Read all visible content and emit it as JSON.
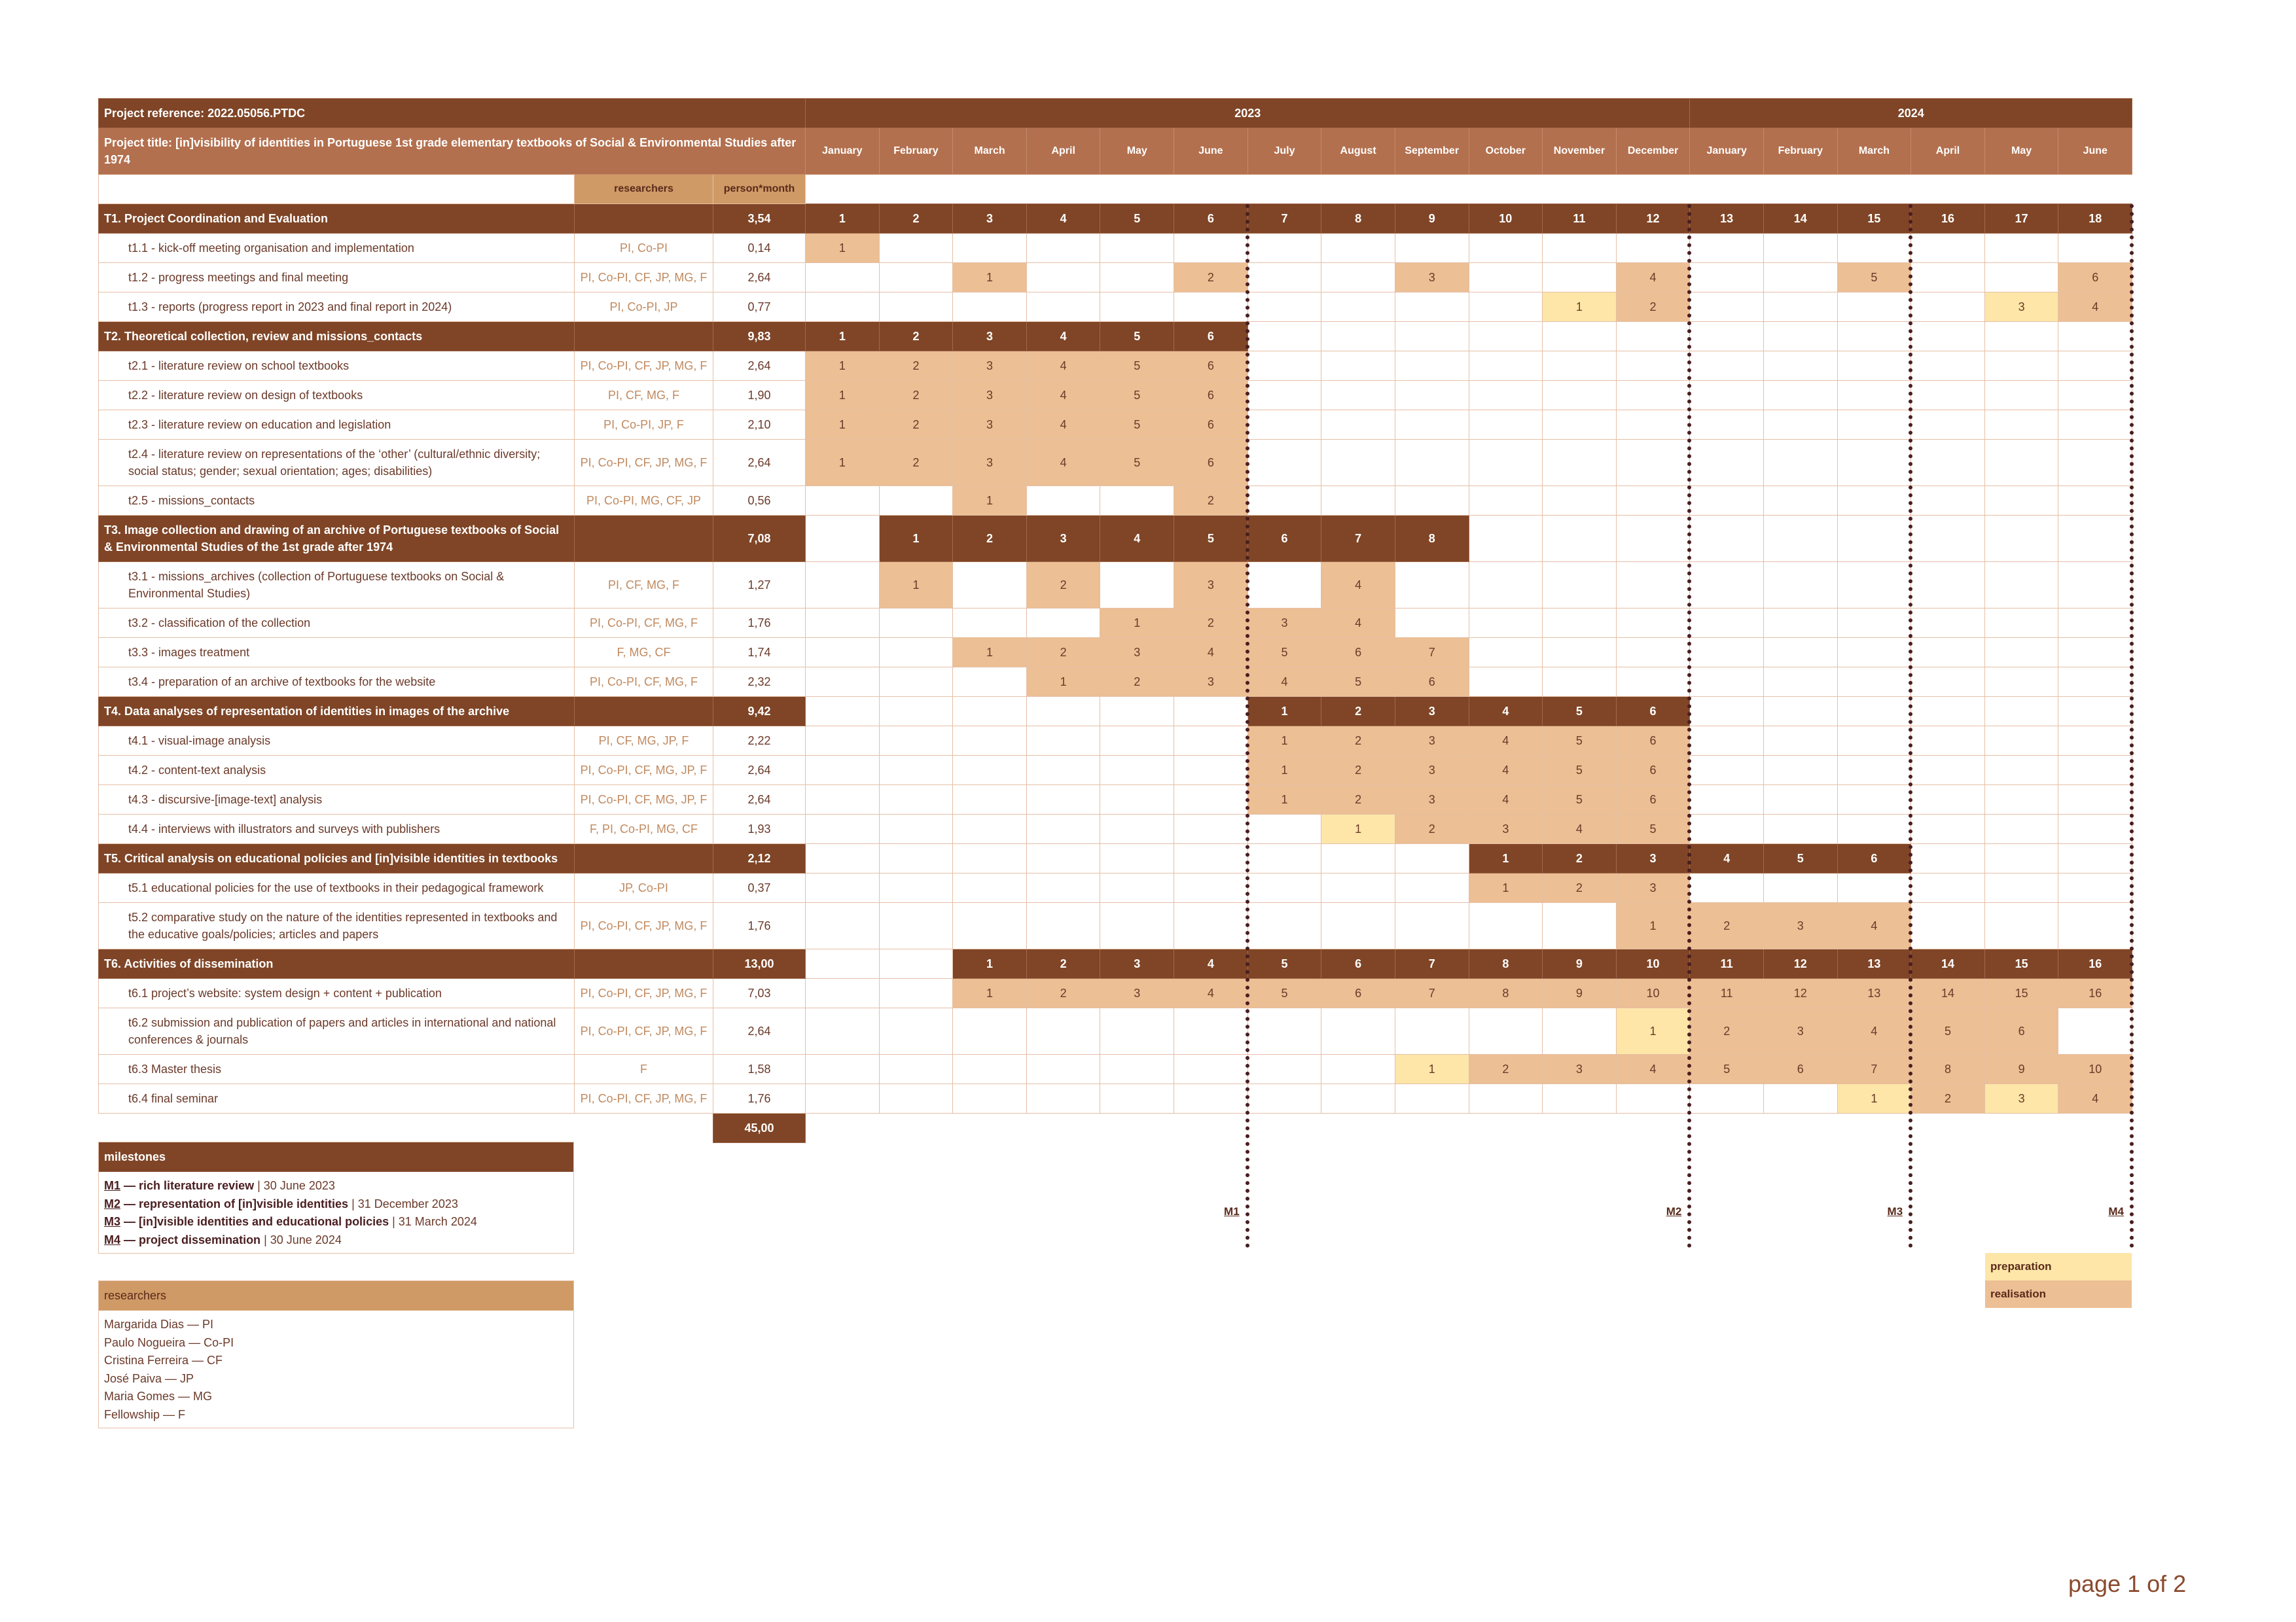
{
  "header": {
    "reference": "Project reference: 2022.05056.PTDC",
    "title": "Project title: [in]visibility of identities in Portuguese 1st grade elementary textbooks of Social & Environmental Studies after 1974",
    "researchers_col": "researchers",
    "person_month_col": "person*month"
  },
  "years": [
    {
      "year": "2023",
      "months": [
        "January",
        "February",
        "March",
        "April",
        "May",
        "June",
        "July",
        "August",
        "September",
        "October",
        "November",
        "December"
      ]
    },
    {
      "year": "2024",
      "months": [
        "January",
        "February",
        "March",
        "April",
        "May",
        "June"
      ]
    }
  ],
  "groups": [
    {
      "title": "T1. Project Coordination and Evaluation",
      "person_month": "3,54",
      "cells": [
        1,
        2,
        3,
        4,
        5,
        6,
        7,
        8,
        9,
        10,
        11,
        12,
        13,
        14,
        15,
        16,
        17,
        18
      ],
      "tasks": [
        {
          "title": "t1.1 - kick-off meeting organisation and implementation",
          "researchers": "PI, Co-PI",
          "person_month": "0,14",
          "cells": [
            1,
            null,
            null,
            null,
            null,
            null,
            null,
            null,
            null,
            null,
            null,
            null,
            null,
            null,
            null,
            null,
            null,
            null
          ]
        },
        {
          "title": "t1.2 - progress meetings and final meeting",
          "researchers": "PI, Co-PI, CF, JP, MG, F",
          "person_month": "2,64",
          "cells": [
            null,
            null,
            1,
            null,
            null,
            2,
            null,
            null,
            3,
            null,
            null,
            4,
            null,
            null,
            5,
            null,
            null,
            6
          ]
        },
        {
          "title": "t1.3 - reports (progress report in 2023 and final report in 2024)",
          "researchers": "PI, Co-PI, JP",
          "person_month": "0,77",
          "cells": [
            null,
            null,
            null,
            null,
            null,
            null,
            null,
            null,
            null,
            null,
            {
              "value": 1,
              "stage": "preparation"
            },
            2,
            null,
            null,
            null,
            null,
            {
              "value": 3,
              "stage": "preparation"
            },
            4
          ]
        }
      ]
    },
    {
      "title": "T2. Theoretical collection, review and missions_contacts",
      "person_month": "9,83",
      "cells": [
        1,
        2,
        3,
        4,
        5,
        6,
        null,
        null,
        null,
        null,
        null,
        null,
        null,
        null,
        null,
        null,
        null,
        null
      ],
      "tasks": [
        {
          "title": "t2.1 - literature review on school textbooks",
          "researchers": "PI, Co-PI, CF, JP, MG, F",
          "person_month": "2,64",
          "cells": [
            1,
            2,
            3,
            4,
            5,
            6,
            null,
            null,
            null,
            null,
            null,
            null,
            null,
            null,
            null,
            null,
            null,
            null
          ]
        },
        {
          "title": "t2.2 - literature review on design of textbooks",
          "researchers": "PI, CF, MG, F",
          "person_month": "1,90",
          "cells": [
            1,
            2,
            3,
            4,
            5,
            6,
            null,
            null,
            null,
            null,
            null,
            null,
            null,
            null,
            null,
            null,
            null,
            null
          ]
        },
        {
          "title": "t2.3 - literature review on education and legislation",
          "researchers": "PI, Co-PI, JP, F",
          "person_month": "2,10",
          "cells": [
            1,
            2,
            3,
            4,
            5,
            6,
            null,
            null,
            null,
            null,
            null,
            null,
            null,
            null,
            null,
            null,
            null,
            null
          ]
        },
        {
          "title": "t2.4 - literature review on representations of the ‘other’ (cultural/ethnic diversity; social status; gender; sexual orientation; ages; disabilities)",
          "researchers": "PI, Co-PI, CF, JP, MG, F",
          "person_month": "2,64",
          "cells": [
            1,
            2,
            3,
            4,
            5,
            6,
            null,
            null,
            null,
            null,
            null,
            null,
            null,
            null,
            null,
            null,
            null,
            null
          ]
        },
        {
          "title": "t2.5 - missions_contacts",
          "researchers": "PI, Co-PI, MG, CF, JP",
          "person_month": "0,56",
          "cells": [
            null,
            null,
            1,
            null,
            null,
            2,
            null,
            null,
            null,
            null,
            null,
            null,
            null,
            null,
            null,
            null,
            null,
            null
          ]
        }
      ]
    },
    {
      "title": "T3. Image collection and drawing of an archive of Portuguese textbooks of Social & Environmental Studies of the 1st grade after 1974",
      "person_month": "7,08",
      "cells": [
        null,
        1,
        2,
        3,
        4,
        5,
        6,
        7,
        8,
        null,
        null,
        null,
        null,
        null,
        null,
        null,
        null,
        null
      ],
      "tasks": [
        {
          "title": "t3.1 - missions_archives (collection of Portuguese textbooks on Social & Environmental Studies)",
          "researchers": "PI, CF, MG, F",
          "person_month": "1,27",
          "cells": [
            null,
            1,
            null,
            2,
            null,
            3,
            null,
            4,
            null,
            null,
            null,
            null,
            null,
            null,
            null,
            null,
            null,
            null
          ]
        },
        {
          "title": "t3.2 - classification of the collection",
          "researchers": "PI, Co-PI, CF, MG, F",
          "person_month": "1,76",
          "cells": [
            null,
            null,
            null,
            null,
            1,
            2,
            3,
            4,
            null,
            null,
            null,
            null,
            null,
            null,
            null,
            null,
            null,
            null
          ]
        },
        {
          "title": "t3.3 - images treatment",
          "researchers": "F, MG, CF",
          "person_month": "1,74",
          "cells": [
            null,
            null,
            1,
            2,
            3,
            4,
            5,
            6,
            7,
            null,
            null,
            null,
            null,
            null,
            null,
            null,
            null,
            null
          ]
        },
        {
          "title": "t3.4 - preparation of an archive of textbooks for the website",
          "researchers": "PI, Co-PI, CF, MG, F",
          "person_month": "2,32",
          "cells": [
            null,
            null,
            null,
            1,
            2,
            3,
            4,
            5,
            6,
            null,
            null,
            null,
            null,
            null,
            null,
            null,
            null,
            null
          ]
        }
      ]
    },
    {
      "title": "T4. Data analyses of representation of identities in images of the archive",
      "person_month": "9,42",
      "cells": [
        null,
        null,
        null,
        null,
        null,
        null,
        1,
        2,
        3,
        4,
        5,
        6,
        null,
        null,
        null,
        null,
        null,
        null
      ],
      "tasks": [
        {
          "title": "t4.1 - visual-image analysis",
          "researchers": "PI, CF, MG, JP, F",
          "person_month": "2,22",
          "cells": [
            null,
            null,
            null,
            null,
            null,
            null,
            1,
            2,
            3,
            4,
            5,
            6,
            null,
            null,
            null,
            null,
            null,
            null
          ]
        },
        {
          "title": "t4.2 - content-text analysis",
          "researchers": "PI, Co-PI, CF, MG, JP, F",
          "person_month": "2,64",
          "cells": [
            null,
            null,
            null,
            null,
            null,
            null,
            1,
            2,
            3,
            4,
            5,
            6,
            null,
            null,
            null,
            null,
            null,
            null
          ]
        },
        {
          "title": "t4.3 - discursive-[image-text] analysis",
          "researchers": "PI, Co-PI, CF, MG, JP, F",
          "person_month": "2,64",
          "cells": [
            null,
            null,
            null,
            null,
            null,
            null,
            1,
            2,
            3,
            4,
            5,
            6,
            null,
            null,
            null,
            null,
            null,
            null
          ]
        },
        {
          "title": "t4.4 - interviews with illustrators and surveys with publishers",
          "researchers": "F, PI, Co-PI, MG, CF",
          "person_month": "1,93",
          "cells": [
            null,
            null,
            null,
            null,
            null,
            null,
            null,
            {
              "value": 1,
              "stage": "preparation"
            },
            2,
            3,
            4,
            5,
            null,
            null,
            null,
            null,
            null,
            null
          ]
        }
      ]
    },
    {
      "title": "T5. Critical analysis on educational policies and [in]visible identities in textbooks",
      "person_month": "2,12",
      "cells": [
        null,
        null,
        null,
        null,
        null,
        null,
        null,
        null,
        null,
        1,
        2,
        3,
        4,
        5,
        6,
        null,
        null,
        null
      ],
      "tasks": [
        {
          "title": "t5.1 educational policies for the use of textbooks in their pedagogical framework",
          "researchers": "JP, Co-PI",
          "person_month": "0,37",
          "cells": [
            null,
            null,
            null,
            null,
            null,
            null,
            null,
            null,
            null,
            1,
            2,
            3,
            null,
            null,
            null,
            null,
            null,
            null
          ]
        },
        {
          "title": "t5.2 comparative study on the nature of the identities represented in textbooks and the educative goals/policies; articles and papers",
          "researchers": "PI, Co-PI, CF, JP, MG, F",
          "person_month": "1,76",
          "cells": [
            null,
            null,
            null,
            null,
            null,
            null,
            null,
            null,
            null,
            null,
            null,
            1,
            2,
            3,
            4,
            null,
            null,
            null
          ]
        }
      ]
    },
    {
      "title": "T6. Activities of dissemination",
      "person_month": "13,00",
      "cells": [
        null,
        null,
        1,
        2,
        3,
        4,
        5,
        6,
        7,
        8,
        9,
        10,
        11,
        12,
        13,
        14,
        15,
        16
      ],
      "tasks": [
        {
          "title": "t6.1 project’s website: system design + content + publication",
          "researchers": "PI, Co-PI, CF, JP, MG, F",
          "person_month": "7,03",
          "cells": [
            null,
            null,
            1,
            2,
            3,
            4,
            5,
            6,
            7,
            8,
            9,
            10,
            11,
            12,
            13,
            14,
            15,
            16
          ]
        },
        {
          "title": "t6.2 submission and publication of papers and articles in international and national conferences & journals",
          "researchers": "PI, Co-PI, CF, JP, MG, F",
          "person_month": "2,64",
          "cells": [
            null,
            null,
            null,
            null,
            null,
            null,
            null,
            null,
            null,
            null,
            null,
            {
              "value": 1,
              "stage": "preparation"
            },
            2,
            3,
            4,
            5,
            6,
            null
          ]
        },
        {
          "title": "t6.3 Master thesis",
          "researchers": "F",
          "person_month": "1,58",
          "cells": [
            null,
            null,
            null,
            null,
            null,
            null,
            null,
            null,
            {
              "value": 1,
              "stage": "preparation"
            },
            2,
            3,
            4,
            5,
            6,
            7,
            8,
            9,
            10
          ]
        },
        {
          "title": "t6.4 final seminar",
          "researchers": "PI, Co-PI, CF, JP, MG, F",
          "person_month": "1,76",
          "cells": [
            null,
            null,
            null,
            null,
            null,
            null,
            null,
            null,
            null,
            null,
            null,
            null,
            null,
            null,
            {
              "value": 1,
              "stage": "preparation"
            },
            2,
            {
              "value": 3,
              "stage": "preparation"
            },
            4
          ]
        }
      ]
    }
  ],
  "total": "45,00",
  "milestones": {
    "title": "milestones",
    "items": [
      {
        "code": "M1",
        "name": " — rich literature review",
        "date": " | 30 June 2023"
      },
      {
        "code": "M2",
        "name": " — representation of [in]visible identities",
        "date": " | 31 December 2023"
      },
      {
        "code": "M3",
        "name": " — [in]visible identities and educational policies",
        "date": " | 31 March 2024"
      },
      {
        "code": "M4",
        "name": " — project dissemination",
        "date": " | 30 June 2024"
      }
    ]
  },
  "researchers": {
    "title": "researchers",
    "items": [
      "Margarida Dias — PI",
      "Paulo Nogueira — Co-PI",
      "Cristina Ferreira — CF",
      "José Paiva — JP",
      "Maria Gomes — MG",
      "Fellowship — F"
    ]
  },
  "legend": {
    "preparation": "preparation",
    "realisation": "realisation"
  },
  "footer": "page 1 of 2"
}
